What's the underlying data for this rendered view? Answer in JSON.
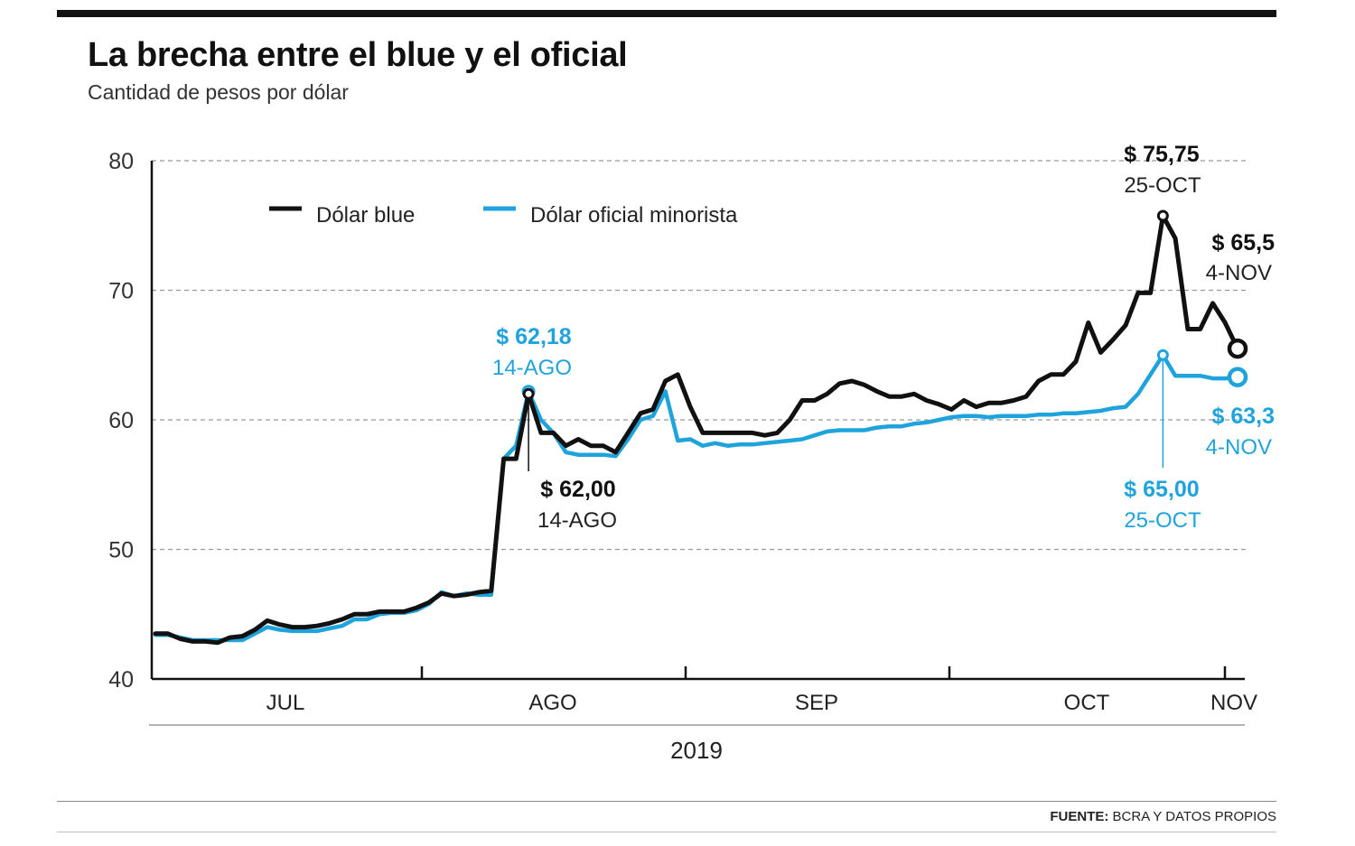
{
  "header": {
    "title": "La brecha entre el blue y el oficial",
    "subtitle": "Cantidad de pesos por dólar"
  },
  "footer": {
    "source_label": "FUENTE:",
    "source_text": "BCRA Y DATOS PROPIOS"
  },
  "colors": {
    "blue_series": "#111111",
    "official_series": "#1fa3dc",
    "grid": "#999999"
  },
  "chart_data": {
    "type": "line",
    "year_label": "2019",
    "ylim": [
      40,
      80
    ],
    "yticks": [
      "80",
      "70",
      "60",
      "50",
      "40"
    ],
    "ytick_values": [
      80,
      70,
      60,
      50,
      40
    ],
    "months": [
      "JUL",
      "AGO",
      "SEP",
      "OCT",
      "NOV"
    ],
    "legend": [
      "Dólar blue",
      "Dólar oficial minorista"
    ],
    "series": [
      {
        "name": "Dólar blue",
        "color": "#111111",
        "values": [
          43.5,
          43.5,
          43.1,
          42.9,
          42.9,
          42.8,
          43.2,
          43.3,
          43.8,
          44.5,
          44.2,
          44.0,
          44.0,
          44.1,
          44.3,
          44.6,
          45.0,
          45.0,
          45.2,
          45.2,
          45.2,
          45.5,
          45.9,
          46.6,
          46.4,
          46.5,
          46.7,
          46.8,
          57.0,
          57.0,
          62.0,
          59.0,
          59.0,
          58.0,
          58.5,
          58.0,
          58.0,
          57.5,
          59.0,
          60.5,
          60.8,
          63.0,
          63.5,
          61.0,
          59.0,
          59.0,
          59.0,
          59.0,
          59.0,
          58.8,
          59.0,
          60.0,
          61.5,
          61.5,
          62.0,
          62.8,
          63.0,
          62.7,
          62.2,
          61.8,
          61.8,
          62.0,
          61.5,
          61.2,
          60.8,
          61.5,
          61.0,
          61.3,
          61.3,
          61.5,
          61.8,
          63.0,
          63.5,
          63.5,
          64.5,
          67.5,
          65.2,
          66.2,
          67.3,
          69.8,
          69.8,
          75.75,
          74.0,
          67.0,
          67.0,
          69.0,
          67.5,
          65.5
        ]
      },
      {
        "name": "Dólar oficial minorista",
        "color": "#1fa3dc",
        "values": [
          43.4,
          43.4,
          43.2,
          43.0,
          43.0,
          43.0,
          43.0,
          43.0,
          43.5,
          44.0,
          43.8,
          43.7,
          43.7,
          43.7,
          43.9,
          44.1,
          44.6,
          44.6,
          45.0,
          45.1,
          45.1,
          45.3,
          45.8,
          46.7,
          46.4,
          46.6,
          46.5,
          46.5,
          57.0,
          58.0,
          62.18,
          60.0,
          59.0,
          57.5,
          57.3,
          57.3,
          57.3,
          57.2,
          58.5,
          60.0,
          60.3,
          62.2,
          58.4,
          58.5,
          58.0,
          58.2,
          58.0,
          58.1,
          58.1,
          58.2,
          58.3,
          58.4,
          58.5,
          58.8,
          59.1,
          59.2,
          59.2,
          59.2,
          59.4,
          59.5,
          59.5,
          59.7,
          59.8,
          60.0,
          60.2,
          60.3,
          60.3,
          60.2,
          60.3,
          60.3,
          60.3,
          60.4,
          60.4,
          60.5,
          60.5,
          60.6,
          60.7,
          60.9,
          61.0,
          62.0,
          63.5,
          65.0,
          63.4,
          63.4,
          63.4,
          63.2,
          63.2,
          63.3
        ]
      }
    ],
    "annotations": [
      {
        "value": "$ 62,18",
        "date": "14-AGO",
        "series": "Dólar oficial minorista"
      },
      {
        "value": "$ 62,00",
        "date": "14-AGO",
        "series": "Dólar blue"
      },
      {
        "value": "$ 75,75",
        "date": "25-OCT",
        "series": "Dólar blue"
      },
      {
        "value": "$ 65,5",
        "date": "4-NOV",
        "series": "Dólar blue"
      },
      {
        "value": "$ 65,00",
        "date": "25-OCT",
        "series": "Dólar oficial minorista"
      },
      {
        "value": "$ 63,3",
        "date": "4-NOV",
        "series": "Dólar oficial minorista"
      }
    ]
  }
}
